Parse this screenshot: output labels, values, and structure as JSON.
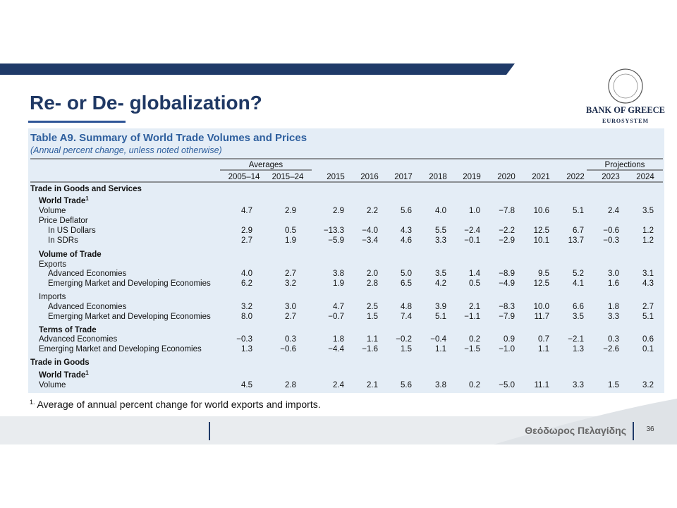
{
  "header": {
    "title": "Re- or De- globalization?",
    "logo_name": "BANK OF GREECE",
    "logo_sub": "EUROSYSTEM"
  },
  "table": {
    "title": "Table A9. Summary of World Trade Volumes and Prices",
    "subtitle": "(Annual percent change, unless noted otherwise)",
    "groups": [
      {
        "label": "Averages",
        "from": 0,
        "to": 1
      },
      {
        "label": "Projections",
        "from": 10,
        "to": 11
      }
    ],
    "columns": [
      "2005–14",
      "2015–24",
      "2015",
      "2016",
      "2017",
      "2018",
      "2019",
      "2020",
      "2021",
      "2022",
      "2023",
      "2024"
    ],
    "rows": [
      {
        "label": "Trade in Goods and Services",
        "level": 0,
        "bold": true
      },
      {
        "label": "World Trade",
        "note": "1",
        "level": 1,
        "bold": true
      },
      {
        "label": "Volume",
        "level": 1,
        "values": [
          "4.7",
          "2.9",
          "2.9",
          "2.2",
          "5.6",
          "4.0",
          "1.0",
          "−7.8",
          "10.6",
          "5.1",
          "2.4",
          "3.5"
        ]
      },
      {
        "label": "Price Deflator",
        "level": 1
      },
      {
        "label": "In US Dollars",
        "level": 2,
        "values": [
          "2.9",
          "0.5",
          "−13.3",
          "−4.0",
          "4.3",
          "5.5",
          "−2.4",
          "−2.2",
          "12.5",
          "6.7",
          "−0.6",
          "1.2"
        ]
      },
      {
        "label": "In SDRs",
        "level": 2,
        "values": [
          "2.7",
          "1.9",
          "−5.9",
          "−3.4",
          "4.6",
          "3.3",
          "−0.1",
          "−2.9",
          "10.1",
          "13.7",
          "−0.3",
          "1.2"
        ]
      },
      {
        "label": "Volume of Trade",
        "level": 1,
        "bold": true
      },
      {
        "label": "Exports",
        "level": 1
      },
      {
        "label": "Advanced Economies",
        "level": 2,
        "values": [
          "4.0",
          "2.7",
          "3.8",
          "2.0",
          "5.0",
          "3.5",
          "1.4",
          "−8.9",
          "9.5",
          "5.2",
          "3.0",
          "3.1"
        ]
      },
      {
        "label": "Emerging Market and Developing Economies",
        "level": 2,
        "values": [
          "6.2",
          "3.2",
          "1.9",
          "2.8",
          "6.5",
          "4.2",
          "0.5",
          "−4.9",
          "12.5",
          "4.1",
          "1.6",
          "4.3"
        ]
      },
      {
        "label": "Imports",
        "level": 1
      },
      {
        "label": "Advanced Economies",
        "level": 2,
        "values": [
          "3.2",
          "3.0",
          "4.7",
          "2.5",
          "4.8",
          "3.9",
          "2.1",
          "−8.3",
          "10.0",
          "6.6",
          "1.8",
          "2.7"
        ]
      },
      {
        "label": "Emerging Market and Developing Economies",
        "level": 2,
        "values": [
          "8.0",
          "2.7",
          "−0.7",
          "1.5",
          "7.4",
          "5.1",
          "−1.1",
          "−7.9",
          "11.7",
          "3.5",
          "3.3",
          "5.1"
        ]
      },
      {
        "label": "Terms of Trade",
        "level": 1,
        "bold": true
      },
      {
        "label": "Advanced Economies",
        "level": 1,
        "values": [
          "−0.3",
          "0.3",
          "1.8",
          "1.1",
          "−0.2",
          "−0.4",
          "0.2",
          "0.9",
          "0.7",
          "−2.1",
          "0.3",
          "0.6"
        ]
      },
      {
        "label": "Emerging Market and Developing Economies",
        "level": 1,
        "values": [
          "1.3",
          "−0.6",
          "−4.4",
          "−1.6",
          "1.5",
          "1.1",
          "−1.5",
          "−1.0",
          "1.1",
          "1.3",
          "−2.6",
          "0.1"
        ]
      },
      {
        "label": "Trade in Goods",
        "level": 0,
        "bold": true
      },
      {
        "label": "World Trade",
        "note": "1",
        "level": 1,
        "bold": true
      },
      {
        "label": "Volume",
        "level": 1,
        "values": [
          "4.5",
          "2.8",
          "2.4",
          "2.1",
          "5.6",
          "3.8",
          "0.2",
          "−5.0",
          "11.1",
          "3.3",
          "1.5",
          "3.2"
        ]
      }
    ]
  },
  "footnote": {
    "mark": "1.",
    "text": "Average of annual percent change for world exports and imports."
  },
  "footer": {
    "author": "Θεόδωρος Πελαγίδης",
    "page": "36"
  }
}
